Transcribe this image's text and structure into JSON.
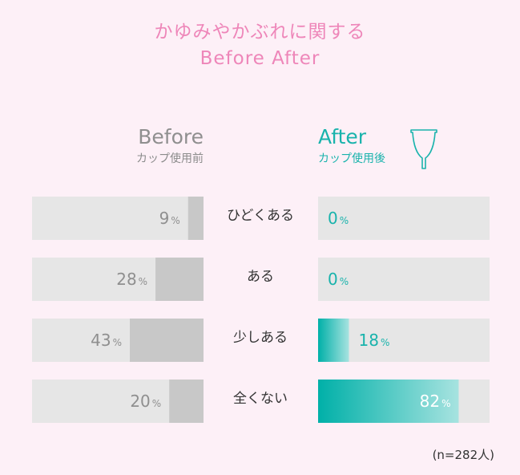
{
  "title_jp": "かゆみやかぶれに関する",
  "title_en": "Before After",
  "before": {
    "title": "Before",
    "subtitle": "カップ使用前"
  },
  "after": {
    "title": "After",
    "subtitle": "カップ使用後"
  },
  "sample_note": "(n=282人)",
  "colors": {
    "track": "#e6e6e6",
    "before_fill": "#c8c8c8",
    "after_fill_start": "#00b0a8",
    "after_fill_end": "#a7e3e0",
    "before_text": "#8f8f8f",
    "after_text": "#19b3ac",
    "title": "#ee86b9"
  },
  "icon": "menstrual-cup-icon",
  "chart_data": {
    "type": "bar",
    "categories": [
      "ひどくある",
      "ある",
      "少しある",
      "全くない"
    ],
    "unit": "%",
    "xlim": [
      0,
      100
    ],
    "series": [
      {
        "name": "Before",
        "values": [
          9,
          28,
          43,
          20
        ]
      },
      {
        "name": "After",
        "values": [
          0,
          0,
          18,
          82
        ]
      }
    ]
  }
}
